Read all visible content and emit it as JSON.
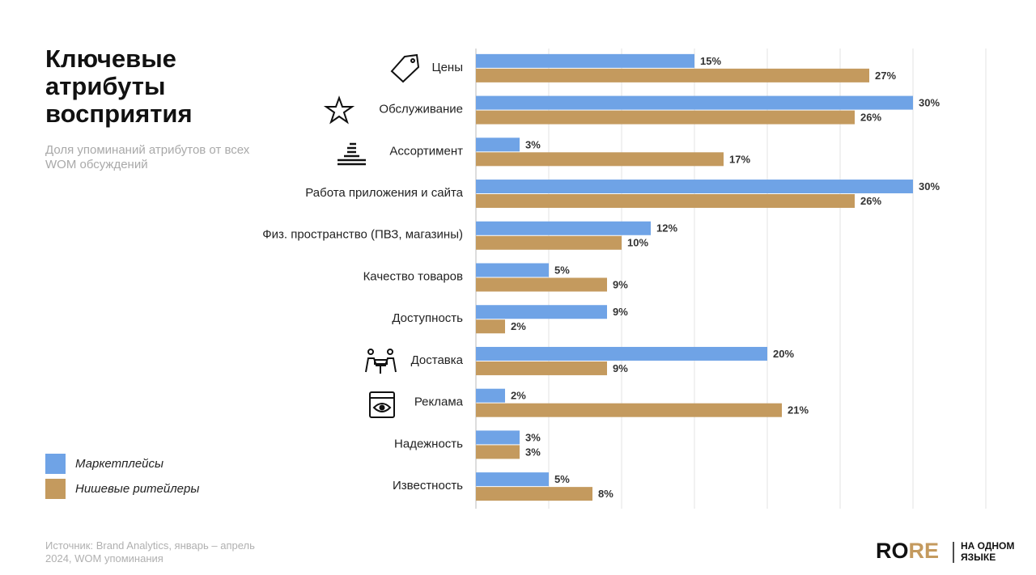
{
  "chart_data": {
    "type": "bar",
    "orientation": "horizontal",
    "title": "Ключевые атрибуты восприятия",
    "subtitle": "Доля упоминаний атрибутов от всех WOM обсуждений",
    "source": "Источник: Brand Analytics, январь – апрель 2024, WOM упоминания",
    "categories": [
      "Цены",
      "Обслуживание",
      "Ассортимент",
      "Работа приложения и сайта",
      "Физ. пространство (ПВЗ, магазины)",
      "Качество товаров",
      "Доступность",
      "Доставка",
      "Реклама",
      "Надежность",
      "Известность"
    ],
    "series": [
      {
        "name": "Маркетплейсы",
        "color": "#6fa3e6",
        "values": [
          15,
          30,
          3,
          30,
          12,
          5,
          9,
          20,
          2,
          3,
          5
        ],
        "value_labels": [
          "15%",
          "30%",
          "3%",
          "30%",
          "12%",
          "5%",
          "9%",
          "20%",
          "2%",
          "3%",
          "5%"
        ]
      },
      {
        "name": "Нишевые ритейлеры",
        "color": "#c49a5e",
        "values": [
          27,
          26,
          17,
          26,
          10,
          9,
          2,
          9,
          21,
          3,
          8
        ],
        "value_labels": [
          "27%",
          "26%",
          "17%",
          "26%",
          "10%",
          "9%",
          "2%",
          "9%",
          "21%",
          "3%",
          "8%"
        ]
      }
    ],
    "xlim": [
      0,
      35
    ],
    "xticks": [
      0,
      5,
      10,
      15,
      20,
      25,
      30,
      35
    ],
    "grid": true,
    "legend": "lower left"
  },
  "logo": {
    "part1": "RO",
    "part2": "RE",
    "tagline1": "НА ОДНОМ",
    "tagline2": "ЯЗЫКЕ"
  }
}
